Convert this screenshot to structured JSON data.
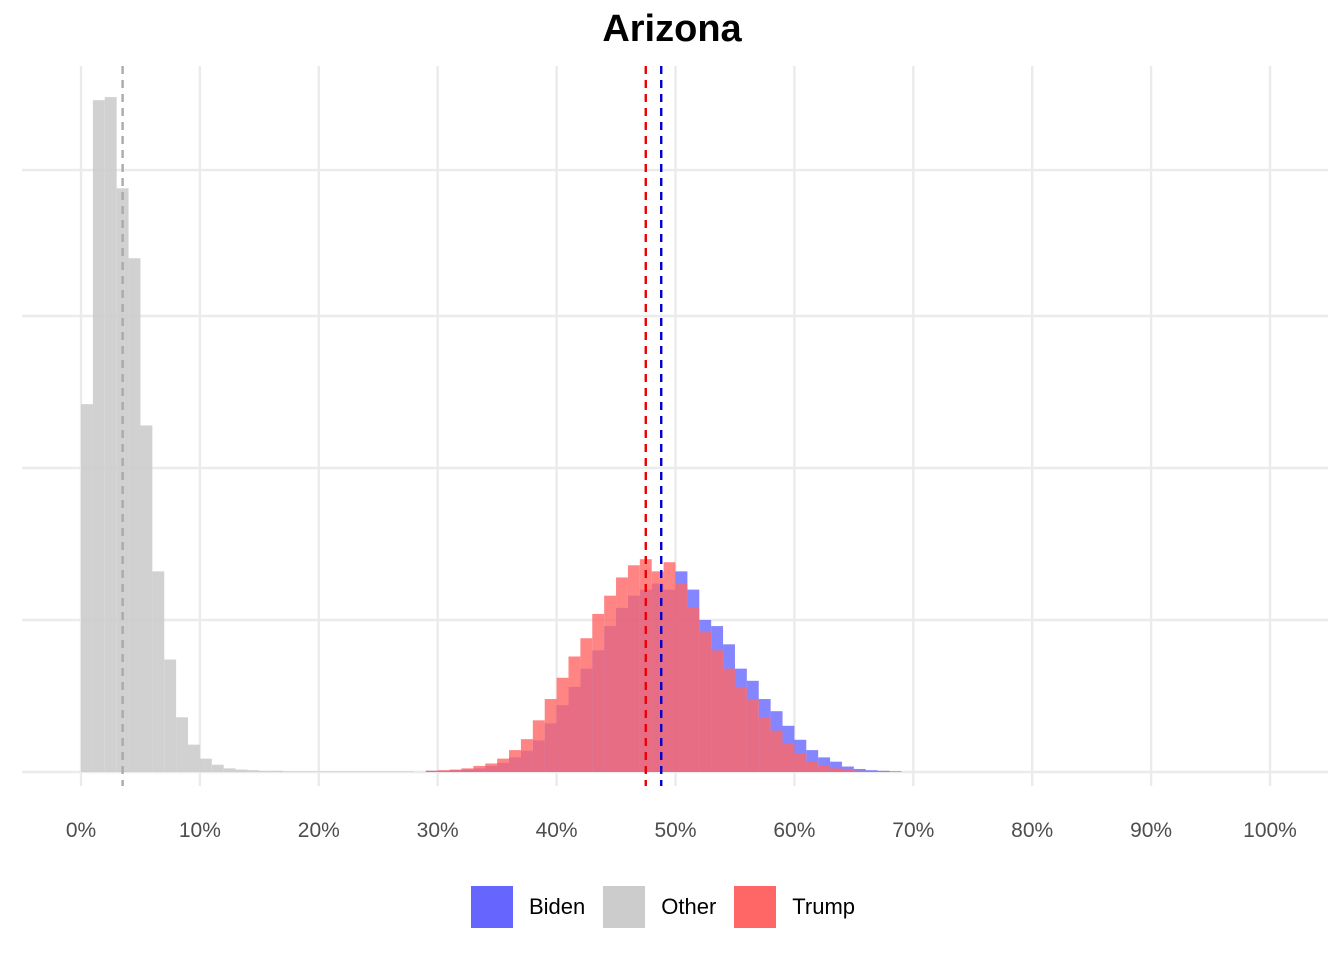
{
  "chart_data": {
    "type": "histogram",
    "title": "Arizona",
    "xlabel": "",
    "ylabel": "",
    "xlim": [
      -0.05,
      1.05
    ],
    "ylim": [
      0,
      1
    ],
    "x_tick_labels": [
      "0%",
      "10%",
      "20%",
      "30%",
      "40%",
      "50%",
      "60%",
      "70%",
      "80%",
      "90%",
      "100%"
    ],
    "x_ticks": [
      0,
      0.1,
      0.2,
      0.3,
      0.4,
      0.5,
      0.6,
      0.7,
      0.8,
      0.9,
      1.0
    ],
    "y_gridlines": [
      0.25,
      0.5,
      0.75
    ],
    "y_tick_labels_shown": false,
    "grid": true,
    "bin_width": 0.01,
    "legend_position": "bottom",
    "series": [
      {
        "name": "Biden",
        "color": "#6666ff",
        "mean": 0.488,
        "mean_line_color": "#0000cc",
        "bins_start": [
          0.29,
          0.3,
          0.31,
          0.32,
          0.33,
          0.34,
          0.35,
          0.36,
          0.37,
          0.38,
          0.39,
          0.4,
          0.41,
          0.42,
          0.43,
          0.44,
          0.45,
          0.46,
          0.47,
          0.48,
          0.49,
          0.5,
          0.51,
          0.52,
          0.53,
          0.54,
          0.55,
          0.56,
          0.57,
          0.58,
          0.59,
          0.6,
          0.61,
          0.62,
          0.63,
          0.64,
          0.65,
          0.66,
          0.67,
          0.68
        ],
        "values": [
          0.002,
          0.002,
          0.003,
          0.004,
          0.006,
          0.01,
          0.015,
          0.024,
          0.035,
          0.052,
          0.08,
          0.11,
          0.14,
          0.17,
          0.2,
          0.24,
          0.27,
          0.29,
          0.3,
          0.31,
          0.3,
          0.33,
          0.3,
          0.25,
          0.24,
          0.21,
          0.17,
          0.15,
          0.12,
          0.1,
          0.076,
          0.053,
          0.036,
          0.024,
          0.017,
          0.009,
          0.005,
          0.003,
          0.002,
          0.001
        ]
      },
      {
        "name": "Other",
        "color": "#cccccc",
        "mean": 0.035,
        "mean_line_color": "#aaaaaa",
        "bins_start": [
          0.0,
          0.01,
          0.02,
          0.03,
          0.04,
          0.05,
          0.06,
          0.07,
          0.08,
          0.09,
          0.1,
          0.11,
          0.12,
          0.13,
          0.14,
          0.15,
          0.16,
          0.17,
          0.18,
          0.19,
          0.2,
          0.21,
          0.22,
          0.23,
          0.24,
          0.25,
          0.26,
          0.27
        ],
        "values": [
          0.605,
          1.105,
          1.11,
          0.96,
          0.845,
          0.57,
          0.33,
          0.185,
          0.09,
          0.045,
          0.022,
          0.012,
          0.006,
          0.004,
          0.003,
          0.002,
          0.002,
          0.001,
          0.001,
          0.001,
          0.001,
          0.001,
          0.001,
          0.001,
          0.001,
          0.001,
          0.001,
          0.001
        ]
      },
      {
        "name": "Trump",
        "color": "#ff6666",
        "mean": 0.475,
        "mean_line_color": "#ee0000",
        "bins_start": [
          0.29,
          0.3,
          0.31,
          0.32,
          0.33,
          0.34,
          0.35,
          0.36,
          0.37,
          0.38,
          0.39,
          0.4,
          0.41,
          0.42,
          0.43,
          0.44,
          0.45,
          0.46,
          0.47,
          0.48,
          0.49,
          0.5,
          0.51,
          0.52,
          0.53,
          0.54,
          0.55,
          0.56,
          0.57,
          0.58,
          0.59,
          0.6,
          0.61,
          0.62,
          0.63,
          0.64,
          0.65,
          0.66,
          0.67,
          0.68
        ],
        "values": [
          0.002,
          0.003,
          0.004,
          0.006,
          0.01,
          0.014,
          0.022,
          0.036,
          0.054,
          0.085,
          0.12,
          0.155,
          0.19,
          0.22,
          0.26,
          0.29,
          0.32,
          0.34,
          0.35,
          0.33,
          0.345,
          0.31,
          0.27,
          0.23,
          0.2,
          0.17,
          0.14,
          0.12,
          0.09,
          0.068,
          0.046,
          0.03,
          0.017,
          0.01,
          0.006,
          0.004,
          0.002,
          0.001,
          0.001,
          0.001
        ]
      }
    ]
  }
}
